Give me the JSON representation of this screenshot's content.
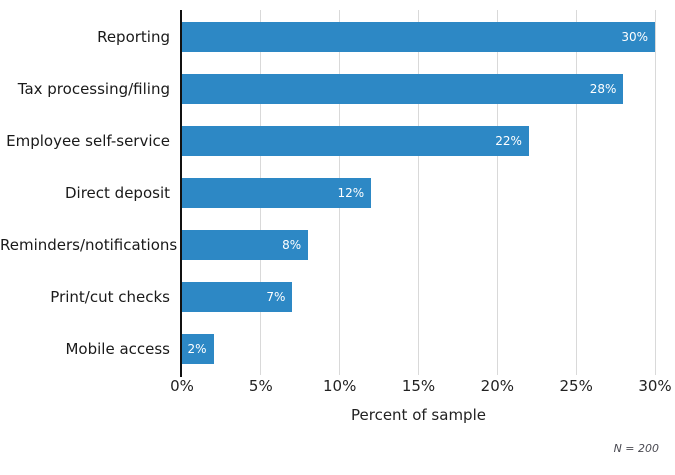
{
  "chart_data": {
    "type": "bar",
    "orientation": "horizontal",
    "categories": [
      "Reporting",
      "Tax processing/filing",
      "Employee self-service",
      "Direct deposit",
      "Reminders/notifications",
      "Print/cut checks",
      "Mobile access"
    ],
    "values": [
      30,
      28,
      22,
      12,
      8,
      7,
      2
    ],
    "value_labels": [
      "30%",
      "28%",
      "22%",
      "12%",
      "8%",
      "7%",
      "2%"
    ],
    "title": "",
    "xlabel": "Percent of sample",
    "ylabel": "",
    "xlim": [
      0,
      30
    ],
    "xticks": [
      0,
      5,
      10,
      15,
      20,
      25,
      30
    ],
    "xtick_labels": [
      "0%",
      "5%",
      "10%",
      "15%",
      "20%",
      "25%",
      "30%"
    ],
    "grid": "vertical",
    "legend": "none",
    "note": "N = 200"
  },
  "colors": {
    "bar": "#2d88c5",
    "grid": "#d9d9d9",
    "axis": "#111111",
    "category_text": "#1a1a1a",
    "tick_text": "#222222",
    "value_text": "#ffffff",
    "note_text": "#4a4a52"
  }
}
